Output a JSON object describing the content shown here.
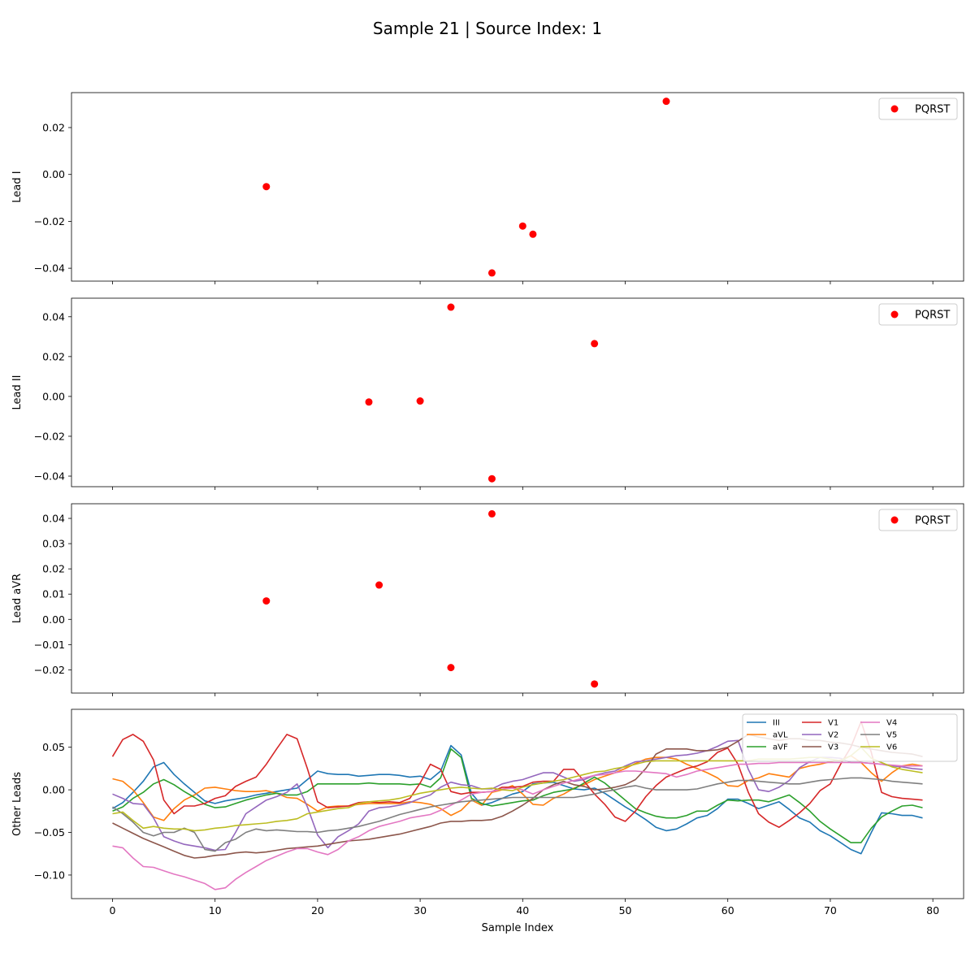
{
  "figure": {
    "title": "Sample 21 | Source Index: 1"
  },
  "chart_data": [
    {
      "type": "scatter",
      "ylabel": "Lead I",
      "xlabel": "",
      "xlim": [
        -4,
        83
      ],
      "ylim": [
        -0.0455,
        0.0349
      ],
      "xticks": [
        0,
        10,
        20,
        30,
        40,
        50,
        60,
        70,
        80
      ],
      "yticks": [
        -0.04,
        -0.02,
        0.0,
        0.02
      ],
      "ytick_labels": [
        "−0.04",
        "−0.02",
        "0.00",
        "0.02"
      ],
      "grid": false,
      "legend_position": "upper right",
      "series": [
        {
          "name": "PQRST",
          "color": "#ff0000",
          "points": [
            [
              15,
              -0.0052
            ],
            [
              37,
              -0.042
            ],
            [
              40,
              -0.022
            ],
            [
              41,
              -0.0255
            ],
            [
              54,
              0.0312
            ]
          ]
        }
      ]
    },
    {
      "type": "scatter",
      "ylabel": "Lead II",
      "xlabel": "",
      "xlim": [
        -4,
        83
      ],
      "ylim": [
        -0.0453,
        0.0493
      ],
      "xticks": [
        0,
        10,
        20,
        30,
        40,
        50,
        60,
        70,
        80
      ],
      "yticks": [
        -0.04,
        -0.02,
        0.0,
        0.02,
        0.04
      ],
      "ytick_labels": [
        "−0.04",
        "−0.02",
        "0.00",
        "0.02",
        "0.04"
      ],
      "grid": false,
      "legend_position": "upper right",
      "series": [
        {
          "name": "PQRST",
          "color": "#ff0000",
          "points": [
            [
              25,
              -0.0028
            ],
            [
              30,
              -0.0023
            ],
            [
              33,
              0.0448
            ],
            [
              37,
              -0.0413
            ],
            [
              47,
              0.0265
            ]
          ]
        }
      ]
    },
    {
      "type": "scatter",
      "ylabel": "Lead aVR",
      "xlabel": "",
      "xlim": [
        -4,
        83
      ],
      "ylim": [
        -0.0292,
        0.0458
      ],
      "xticks": [
        0,
        10,
        20,
        30,
        40,
        50,
        60,
        70,
        80
      ],
      "yticks": [
        -0.02,
        -0.01,
        0.0,
        0.01,
        0.02,
        0.03,
        0.04
      ],
      "ytick_labels": [
        "−0.02",
        "−0.01",
        "0.00",
        "0.01",
        "0.02",
        "0.03",
        "0.04"
      ],
      "grid": false,
      "legend_position": "upper right",
      "series": [
        {
          "name": "PQRST",
          "color": "#ff0000",
          "points": [
            [
              15,
              0.0073
            ],
            [
              26,
              0.0136
            ],
            [
              33,
              -0.0191
            ],
            [
              37,
              0.0418
            ],
            [
              47,
              -0.0256
            ]
          ]
        }
      ]
    },
    {
      "type": "line",
      "ylabel": "Other Leads",
      "xlabel": "Sample Index",
      "xlim": [
        -4,
        83
      ],
      "ylim": [
        -0.1277,
        0.0945
      ],
      "xticks": [
        0,
        10,
        20,
        30,
        40,
        50,
        60,
        70,
        80
      ],
      "xtick_labels": [
        "0",
        "10",
        "20",
        "30",
        "40",
        "50",
        "60",
        "70",
        "80"
      ],
      "yticks": [
        -0.1,
        -0.05,
        0.0,
        0.05
      ],
      "ytick_labels": [
        "−0.10",
        "−0.05",
        "0.00",
        "0.05"
      ],
      "grid": false,
      "legend_position": "upper right",
      "legend_columns": 4,
      "series": [
        {
          "name": "III",
          "color": "#1f77b4",
          "values": [
            -0.022,
            -0.015,
            -0.003,
            0.01,
            0.027,
            0.032,
            0.018,
            0.007,
            -0.003,
            -0.013,
            -0.016,
            -0.013,
            -0.011,
            -0.009,
            -0.006,
            -0.004,
            -0.002,
            0.0,
            0.002,
            0.012,
            0.022,
            0.019,
            0.018,
            0.018,
            0.016,
            0.017,
            0.018,
            0.018,
            0.017,
            0.015,
            0.016,
            0.012,
            0.022,
            0.052,
            0.041,
            -0.004,
            -0.018,
            -0.015,
            -0.01,
            -0.005,
            -0.002,
            0.007,
            0.008,
            0.009,
            0.005,
            0.001,
            0.0,
            0.002,
            -0.004,
            -0.012,
            -0.02,
            -0.027,
            -0.035,
            -0.044,
            -0.048,
            -0.046,
            -0.04,
            -0.033,
            -0.03,
            -0.022,
            -0.011,
            -0.011,
            -0.016,
            -0.022,
            -0.018,
            -0.014,
            -0.023,
            -0.033,
            -0.038,
            -0.048,
            -0.054,
            -0.062,
            -0.07,
            -0.075,
            -0.05,
            -0.027,
            -0.028,
            -0.03,
            -0.03,
            -0.033
          ]
        },
        {
          "name": "aVL",
          "color": "#ff7f0e",
          "values": [
            0.013,
            0.01,
            0.0,
            -0.015,
            -0.032,
            -0.036,
            -0.022,
            -0.012,
            -0.006,
            0.002,
            0.003,
            0.001,
            -0.001,
            -0.002,
            -0.002,
            -0.001,
            -0.004,
            -0.009,
            -0.01,
            -0.017,
            -0.025,
            -0.02,
            -0.019,
            -0.019,
            -0.017,
            -0.016,
            -0.016,
            -0.016,
            -0.016,
            -0.014,
            -0.015,
            -0.017,
            -0.022,
            -0.03,
            -0.024,
            -0.012,
            -0.018,
            -0.003,
            0.0,
            0.005,
            -0.005,
            -0.017,
            -0.018,
            -0.01,
            -0.005,
            0.002,
            0.006,
            0.012,
            0.016,
            0.02,
            0.025,
            0.031,
            0.036,
            0.038,
            0.038,
            0.036,
            0.03,
            0.025,
            0.02,
            0.014,
            0.005,
            0.004,
            0.011,
            0.014,
            0.019,
            0.017,
            0.015,
            0.025,
            0.028,
            0.03,
            0.033,
            0.035,
            0.04,
            0.032,
            0.02,
            0.01,
            0.02,
            0.028,
            0.03,
            0.028
          ]
        },
        {
          "name": "aVF",
          "color": "#2ca02c",
          "values": [
            -0.025,
            -0.02,
            -0.01,
            -0.003,
            0.007,
            0.012,
            0.006,
            -0.002,
            -0.009,
            -0.017,
            -0.021,
            -0.02,
            -0.016,
            -0.012,
            -0.009,
            -0.006,
            -0.004,
            -0.006,
            -0.006,
            -0.002,
            0.007,
            0.007,
            0.007,
            0.007,
            0.007,
            0.008,
            0.007,
            0.007,
            0.007,
            0.006,
            0.007,
            0.003,
            0.014,
            0.048,
            0.038,
            -0.01,
            -0.016,
            -0.019,
            -0.017,
            -0.015,
            -0.013,
            -0.012,
            -0.007,
            -0.003,
            -0.001,
            0.001,
            0.008,
            0.015,
            0.008,
            -0.002,
            -0.012,
            -0.022,
            -0.027,
            -0.031,
            -0.033,
            -0.033,
            -0.03,
            -0.025,
            -0.025,
            -0.018,
            -0.012,
            -0.013,
            -0.012,
            -0.012,
            -0.014,
            -0.01,
            -0.006,
            -0.015,
            -0.025,
            -0.037,
            -0.046,
            -0.054,
            -0.062,
            -0.062,
            -0.045,
            -0.032,
            -0.025,
            -0.019,
            -0.018,
            -0.021
          ]
        },
        {
          "name": "V1",
          "color": "#d62728",
          "values": [
            0.039,
            0.059,
            0.065,
            0.057,
            0.035,
            -0.012,
            -0.028,
            -0.019,
            -0.019,
            -0.016,
            -0.01,
            -0.007,
            0.004,
            0.01,
            0.015,
            0.03,
            0.048,
            0.065,
            0.06,
            0.025,
            -0.014,
            -0.021,
            -0.02,
            -0.019,
            -0.015,
            -0.014,
            -0.015,
            -0.014,
            -0.015,
            -0.01,
            0.008,
            0.03,
            0.024,
            -0.002,
            -0.005,
            -0.003,
            -0.003,
            -0.002,
            0.003,
            0.003,
            0.004,
            0.009,
            0.01,
            0.01,
            0.024,
            0.024,
            0.01,
            -0.005,
            -0.017,
            -0.032,
            -0.037,
            -0.025,
            -0.008,
            0.005,
            0.015,
            0.02,
            0.025,
            0.028,
            0.033,
            0.044,
            0.049,
            0.03,
            -0.003,
            -0.028,
            -0.038,
            -0.044,
            -0.036,
            -0.027,
            -0.016,
            -0.001,
            0.007,
            0.03,
            0.05,
            0.08,
            0.044,
            -0.003,
            -0.008,
            -0.01,
            -0.011,
            -0.012
          ]
        },
        {
          "name": "V2",
          "color": "#9467bd",
          "values": [
            -0.005,
            -0.01,
            -0.016,
            -0.017,
            -0.033,
            -0.055,
            -0.06,
            -0.064,
            -0.066,
            -0.068,
            -0.071,
            -0.07,
            -0.05,
            -0.028,
            -0.02,
            -0.012,
            -0.008,
            -0.003,
            0.007,
            -0.02,
            -0.053,
            -0.068,
            -0.055,
            -0.048,
            -0.04,
            -0.025,
            -0.021,
            -0.02,
            -0.018,
            -0.015,
            -0.01,
            -0.006,
            0.003,
            0.009,
            0.006,
            0.005,
            0.001,
            0.001,
            0.007,
            0.01,
            0.012,
            0.016,
            0.02,
            0.02,
            0.015,
            0.01,
            0.012,
            0.017,
            0.02,
            0.022,
            0.028,
            0.033,
            0.034,
            0.036,
            0.038,
            0.04,
            0.041,
            0.043,
            0.046,
            0.051,
            0.057,
            0.058,
            0.024,
            0.0,
            -0.002,
            0.003,
            0.011,
            0.026,
            0.033,
            0.038,
            0.038,
            0.037,
            0.032,
            0.032,
            0.031,
            0.03,
            0.028,
            0.027,
            0.025,
            0.024
          ]
        },
        {
          "name": "V3",
          "color": "#8c564b",
          "values": [
            -0.039,
            -0.045,
            -0.051,
            -0.057,
            -0.062,
            -0.067,
            -0.072,
            -0.077,
            -0.08,
            -0.079,
            -0.077,
            -0.076,
            -0.074,
            -0.073,
            -0.074,
            -0.073,
            -0.071,
            -0.069,
            -0.068,
            -0.067,
            -0.066,
            -0.064,
            -0.062,
            -0.06,
            -0.059,
            -0.058,
            -0.056,
            -0.054,
            -0.052,
            -0.049,
            -0.046,
            -0.043,
            -0.039,
            -0.037,
            -0.037,
            -0.036,
            -0.036,
            -0.035,
            -0.031,
            -0.025,
            -0.018,
            -0.01,
            0.0,
            0.006,
            0.01,
            0.006,
            0.004,
            0.0,
            0.001,
            0.003,
            0.006,
            0.012,
            0.025,
            0.042,
            0.048,
            0.048,
            0.048,
            0.046,
            0.046,
            0.047,
            0.05,
            0.057,
            0.065,
            0.062,
            0.06,
            0.058,
            0.06,
            0.06,
            0.058,
            0.058,
            0.056,
            0.055,
            0.053,
            0.05,
            0.048,
            0.046,
            0.044,
            0.043,
            0.042,
            0.039
          ]
        },
        {
          "name": "V4",
          "color": "#e377c2",
          "values": [
            -0.066,
            -0.068,
            -0.08,
            -0.09,
            -0.091,
            -0.095,
            -0.099,
            -0.102,
            -0.106,
            -0.11,
            -0.117,
            -0.115,
            -0.105,
            -0.097,
            -0.09,
            -0.083,
            -0.078,
            -0.073,
            -0.069,
            -0.069,
            -0.073,
            -0.076,
            -0.07,
            -0.06,
            -0.055,
            -0.048,
            -0.043,
            -0.04,
            -0.037,
            -0.033,
            -0.031,
            -0.029,
            -0.024,
            -0.018,
            -0.012,
            -0.005,
            -0.003,
            -0.002,
            0.001,
            0.002,
            0.0,
            -0.005,
            0.0,
            0.004,
            0.008,
            0.011,
            0.014,
            0.017,
            0.018,
            0.02,
            0.022,
            0.022,
            0.021,
            0.02,
            0.019,
            0.015,
            0.018,
            0.022,
            0.024,
            0.026,
            0.028,
            0.03,
            0.03,
            0.031,
            0.031,
            0.032,
            0.032,
            0.032,
            0.032,
            0.032,
            0.032,
            0.032,
            0.032,
            0.032,
            0.031,
            0.03,
            0.029,
            0.028,
            0.028,
            0.028
          ]
        },
        {
          "name": "V5",
          "color": "#7f7f7f",
          "values": [
            -0.02,
            -0.028,
            -0.038,
            -0.05,
            -0.054,
            -0.05,
            -0.05,
            -0.045,
            -0.05,
            -0.07,
            -0.072,
            -0.062,
            -0.058,
            -0.05,
            -0.046,
            -0.048,
            -0.047,
            -0.048,
            -0.049,
            -0.049,
            -0.05,
            -0.048,
            -0.047,
            -0.045,
            -0.043,
            -0.04,
            -0.037,
            -0.033,
            -0.029,
            -0.026,
            -0.023,
            -0.02,
            -0.018,
            -0.016,
            -0.014,
            -0.013,
            -0.012,
            -0.011,
            -0.01,
            -0.009,
            -0.009,
            -0.009,
            -0.009,
            -0.009,
            -0.009,
            -0.009,
            -0.007,
            -0.005,
            -0.002,
            0.0,
            0.003,
            0.005,
            0.002,
            0.0,
            0.0,
            0.0,
            0.0,
            0.001,
            0.004,
            0.007,
            0.009,
            0.011,
            0.011,
            0.01,
            0.009,
            0.008,
            0.007,
            0.007,
            0.009,
            0.011,
            0.012,
            0.013,
            0.014,
            0.014,
            0.013,
            0.012,
            0.01,
            0.009,
            0.008,
            0.007
          ]
        },
        {
          "name": "V6",
          "color": "#bcbd22",
          "values": [
            -0.028,
            -0.026,
            -0.036,
            -0.045,
            -0.043,
            -0.045,
            -0.046,
            -0.046,
            -0.048,
            -0.047,
            -0.045,
            -0.044,
            -0.042,
            -0.041,
            -0.04,
            -0.039,
            -0.037,
            -0.036,
            -0.034,
            -0.028,
            -0.026,
            -0.024,
            -0.022,
            -0.021,
            -0.016,
            -0.014,
            -0.013,
            -0.012,
            -0.01,
            -0.007,
            -0.004,
            -0.002,
            0.0,
            0.002,
            0.003,
            0.002,
            0.001,
            0.002,
            0.0,
            -0.001,
            0.003,
            0.006,
            0.008,
            0.01,
            0.012,
            0.015,
            0.018,
            0.021,
            0.022,
            0.025,
            0.027,
            0.03,
            0.033,
            0.034,
            0.034,
            0.034,
            0.034,
            0.034,
            0.034,
            0.034,
            0.034,
            0.034,
            0.034,
            0.036,
            0.036,
            0.036,
            0.036,
            0.037,
            0.038,
            0.038,
            0.036,
            0.034,
            0.04,
            0.05,
            0.037,
            0.032,
            0.027,
            0.024,
            0.022,
            0.02
          ]
        }
      ]
    }
  ]
}
